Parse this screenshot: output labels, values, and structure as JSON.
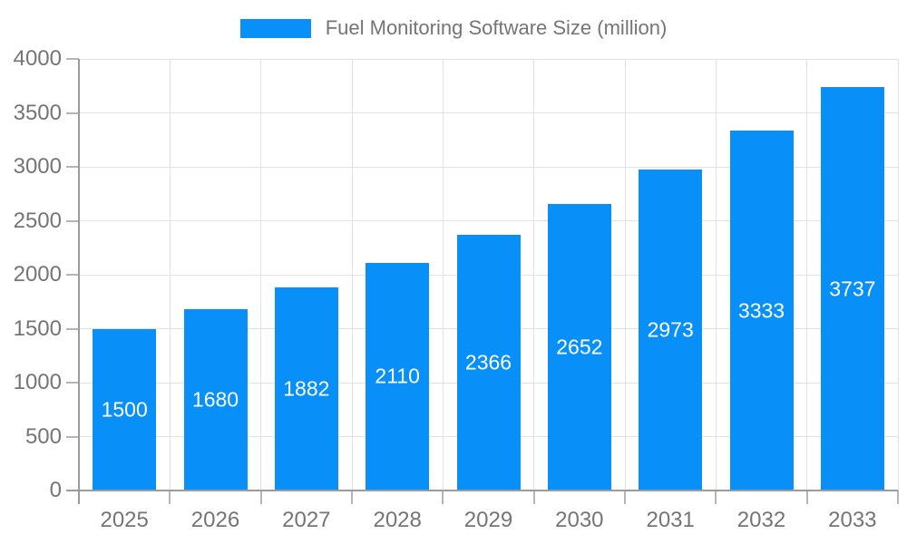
{
  "chart_data": {
    "type": "bar",
    "title": "Fuel Monitoring Software Size (million)",
    "categories": [
      "2025",
      "2026",
      "2027",
      "2028",
      "2029",
      "2030",
      "2031",
      "2032",
      "2033"
    ],
    "values": [
      1500,
      1680,
      1882,
      2110,
      2366,
      2652,
      2973,
      3333,
      3737
    ],
    "xlabel": "",
    "ylabel": "",
    "ylim": [
      0,
      4000
    ],
    "yticks": [
      0,
      500,
      1000,
      1500,
      2000,
      2500,
      3000,
      3500,
      4000
    ],
    "grid": true,
    "legend_position": "top",
    "bar_value_labels_visible": true
  },
  "colors": {
    "bar": "#0890f8",
    "bar_label_text": "#ffffff",
    "grid": "#e2e2e2",
    "axis": "#9b9b9b",
    "tick": "#b5b5b5",
    "axis_text": "#757575",
    "background": "#ffffff"
  }
}
